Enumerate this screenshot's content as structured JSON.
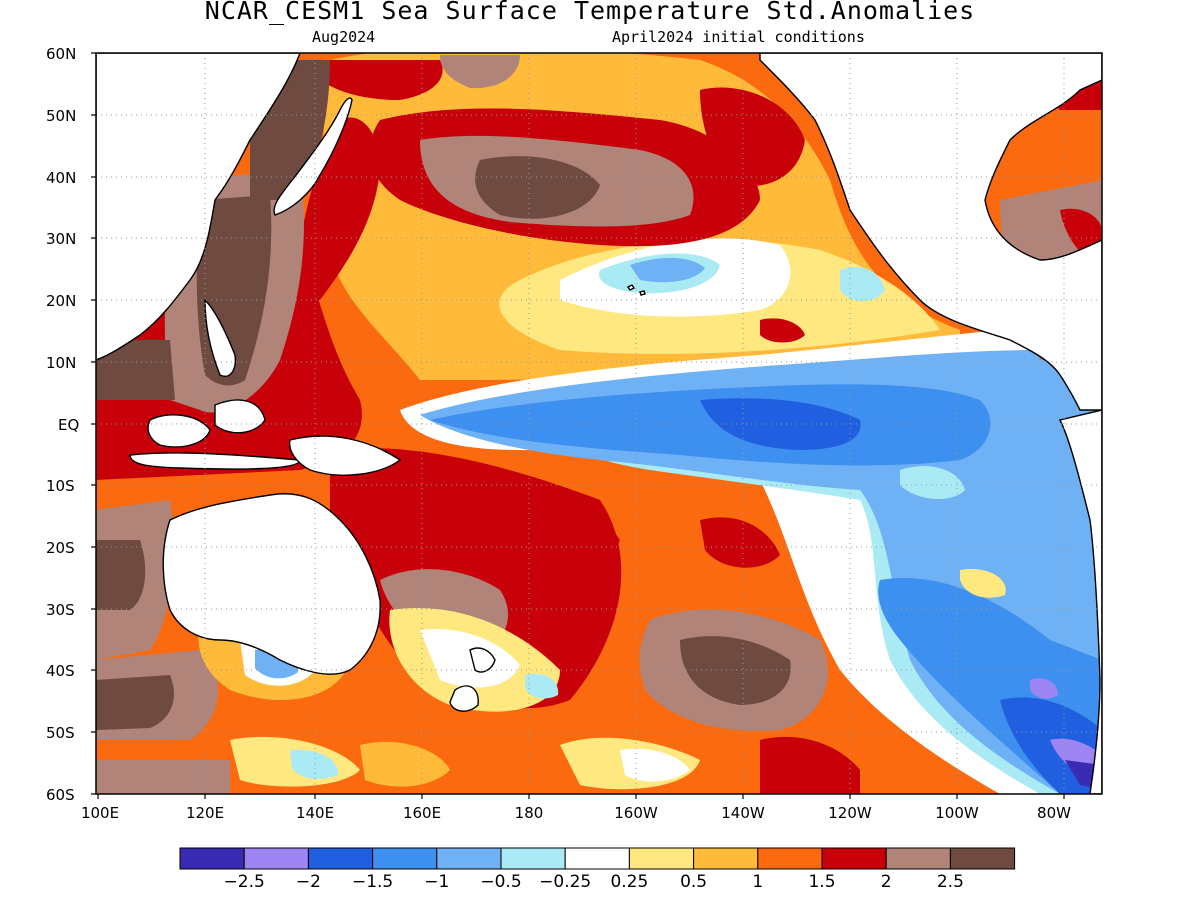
{
  "title": "NCAR_CESM1 Sea Surface Temperature Std.Anomalies",
  "subtitle_left": "Aug2024",
  "subtitle_right": "April2024 initial conditions",
  "lat_labels": [
    "60N",
    "50N",
    "40N",
    "30N",
    "20N",
    "10N",
    "EQ",
    "10S",
    "20S",
    "30S",
    "40S",
    "50S",
    "60S"
  ],
  "lon_labels": [
    "100E",
    "120E",
    "140E",
    "160E",
    "180",
    "160W",
    "140W",
    "120W",
    "100W",
    "80W"
  ],
  "colorbar": {
    "colors": [
      "#3a2bb5",
      "#9d86f4",
      "#1f5fe0",
      "#3d8ff0",
      "#6fb1f5",
      "#aaeaf5",
      "#ffffff",
      "#ffe880",
      "#ffba3a",
      "#fb6a0e",
      "#c8000a",
      "#b08478",
      "#6e4a40"
    ],
    "labels": [
      "-2.5",
      "-2",
      "-1.5",
      "-1",
      "-0.5",
      "-0.25",
      "0.25",
      "0.5",
      "1",
      "1.5",
      "2",
      "2.5"
    ]
  },
  "colors": {
    "land": "#ffffff",
    "coast": "#000000",
    "grid": "#999999"
  }
}
